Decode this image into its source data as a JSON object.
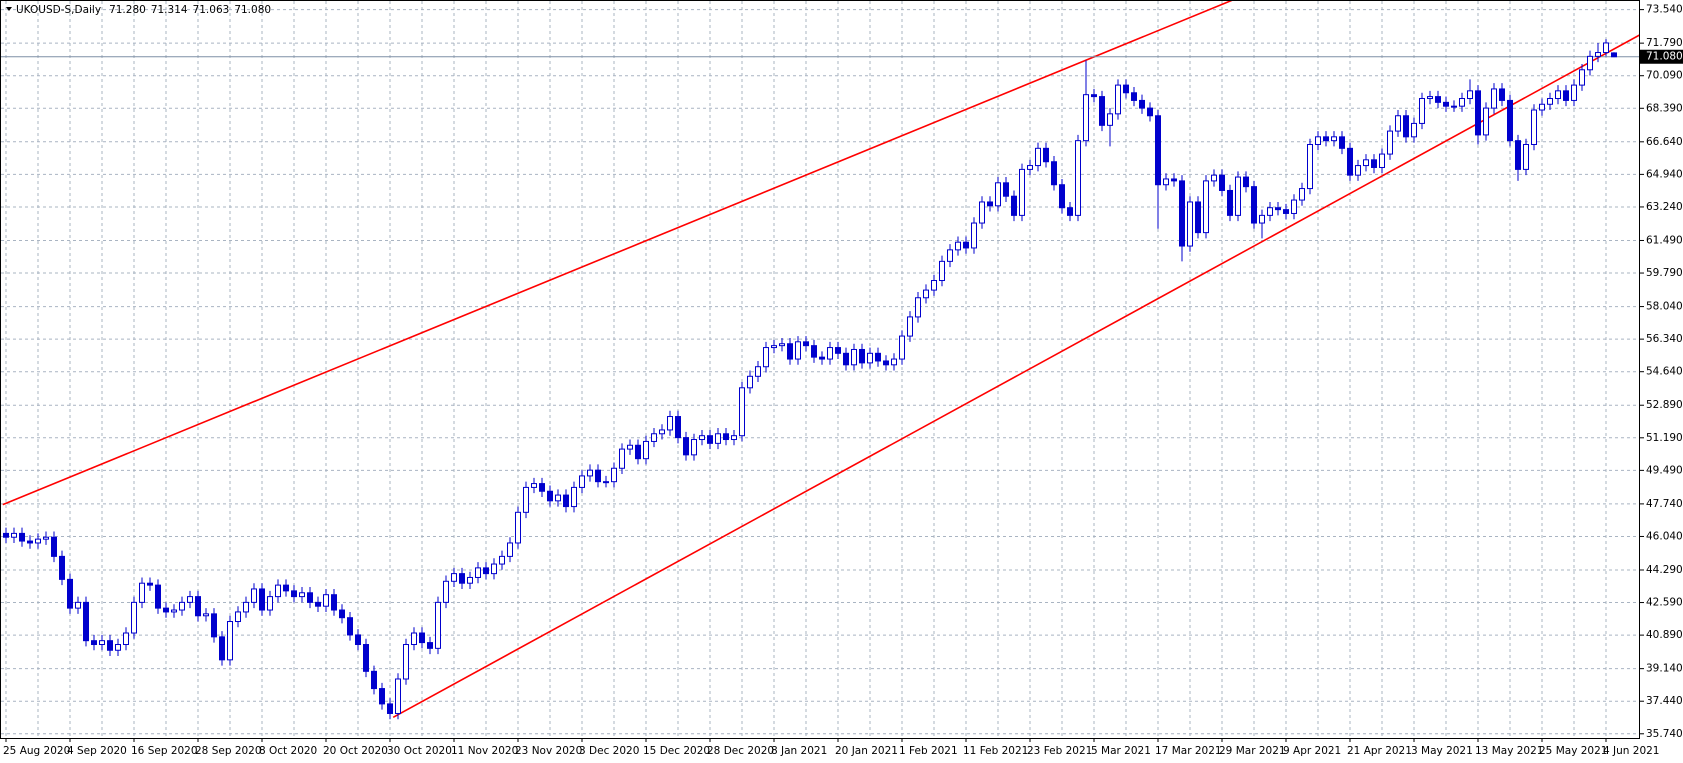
{
  "chart_data": {
    "type": "candlestick",
    "title": "UKOUSD-S,Daily",
    "ohlc_labels": [
      "71.280",
      "71.314",
      "71.063",
      "71.080"
    ],
    "current_price": {
      "value": 71.08,
      "label": "71.080"
    },
    "color": "#0000cd",
    "grid": true,
    "grid_color": "#a9b4c2",
    "ylim": [
      35.52,
      73.99
    ],
    "yticks": [
      {
        "value": 73.54,
        "label": "73.540"
      },
      {
        "value": 71.79,
        "label": "71.790"
      },
      {
        "value": 70.09,
        "label": "70.090"
      },
      {
        "value": 68.39,
        "label": "68.390"
      },
      {
        "value": 66.64,
        "label": "66.640"
      },
      {
        "value": 64.94,
        "label": "64.940"
      },
      {
        "value": 63.24,
        "label": "63.240"
      },
      {
        "value": 61.49,
        "label": "61.490"
      },
      {
        "value": 59.79,
        "label": "59.790"
      },
      {
        "value": 58.04,
        "label": "58.040"
      },
      {
        "value": 56.34,
        "label": "56.340"
      },
      {
        "value": 54.64,
        "label": "54.640"
      },
      {
        "value": 52.89,
        "label": "52.890"
      },
      {
        "value": 51.19,
        "label": "51.190"
      },
      {
        "value": 49.49,
        "label": "49.490"
      },
      {
        "value": 47.74,
        "label": "47.740"
      },
      {
        "value": 46.04,
        "label": "46.040"
      },
      {
        "value": 44.29,
        "label": "44.290"
      },
      {
        "value": 42.59,
        "label": "42.590"
      },
      {
        "value": 40.89,
        "label": "40.890"
      },
      {
        "value": 39.14,
        "label": "39.140"
      },
      {
        "value": 37.44,
        "label": "37.440"
      },
      {
        "value": 35.74,
        "label": "35.740"
      }
    ],
    "trendlines": [
      {
        "color": "#ff0000",
        "points": [
          [
            -0.4,
            47.7
          ],
          [
            135,
            70.9
          ]
        ]
      },
      {
        "color": "#ff0000",
        "points": [
          [
            48.4,
            36.6
          ],
          [
            205,
            72.4
          ]
        ]
      }
    ],
    "categories": [
      "25 Aug 2020",
      null,
      null,
      null,
      null,
      null,
      null,
      null,
      "4 Sep 2020",
      null,
      null,
      null,
      null,
      null,
      null,
      null,
      "16 Sep 2020",
      null,
      null,
      null,
      null,
      null,
      null,
      null,
      "28 Sep 2020",
      null,
      null,
      null,
      null,
      null,
      null,
      null,
      "8 Oct 2020",
      null,
      null,
      null,
      null,
      null,
      null,
      null,
      "20 Oct 2020",
      null,
      null,
      null,
      null,
      null,
      null,
      null,
      "30 Oct 2020",
      null,
      null,
      null,
      null,
      null,
      null,
      null,
      "11 Nov 2020",
      null,
      null,
      null,
      null,
      null,
      null,
      null,
      "23 Nov 2020",
      null,
      null,
      null,
      null,
      null,
      null,
      null,
      "3 Dec 2020",
      null,
      null,
      null,
      null,
      null,
      null,
      null,
      "15 Dec 2020",
      null,
      null,
      null,
      null,
      null,
      null,
      null,
      "28 Dec 2020",
      null,
      null,
      null,
      null,
      null,
      null,
      null,
      "8 Jan 2021",
      null,
      null,
      null,
      null,
      null,
      null,
      null,
      "20 Jan 2021",
      null,
      null,
      null,
      null,
      null,
      null,
      null,
      "1 Feb 2021",
      null,
      null,
      null,
      null,
      null,
      null,
      null,
      "11 Feb 2021",
      null,
      null,
      null,
      null,
      null,
      null,
      null,
      "23 Feb 2021",
      null,
      null,
      null,
      null,
      null,
      null,
      null,
      "5 Mar 2021",
      null,
      null,
      null,
      null,
      null,
      null,
      null,
      "17 Mar 2021",
      null,
      null,
      null,
      null,
      null,
      null,
      null,
      "29 Mar 2021",
      null,
      null,
      null,
      null,
      null,
      null,
      null,
      "9 Apr 2021",
      null,
      null,
      null,
      null,
      null,
      null,
      null,
      "21 Apr 2021",
      null,
      null,
      null,
      null,
      null,
      null,
      null,
      "3 May 2021",
      null,
      null,
      null,
      null,
      null,
      null,
      null,
      "13 May 2021",
      null,
      null,
      null,
      null,
      null,
      null,
      null,
      "25 May 2021",
      null,
      null,
      null,
      null,
      null,
      null,
      null,
      "4 Jun 2021",
      null
    ],
    "candles": [
      [
        46.2,
        46.5,
        45.7,
        46.0
      ],
      [
        46.0,
        46.5,
        45.7,
        46.2
      ],
      [
        46.2,
        46.5,
        45.5,
        45.8
      ],
      [
        45.8,
        46.1,
        45.4,
        45.7
      ],
      [
        45.7,
        46.2,
        45.4,
        45.9
      ],
      [
        45.9,
        46.3,
        45.6,
        46.0
      ],
      [
        46.0,
        46.3,
        44.7,
        45.0
      ],
      [
        45.0,
        45.3,
        43.5,
        43.8
      ],
      [
        43.8,
        44.1,
        42.0,
        42.3
      ],
      [
        42.3,
        42.9,
        42.0,
        42.6
      ],
      [
        42.6,
        42.9,
        40.3,
        40.6
      ],
      [
        40.6,
        40.9,
        40.1,
        40.4
      ],
      [
        40.4,
        40.9,
        40.1,
        40.6
      ],
      [
        40.6,
        40.9,
        39.8,
        40.1
      ],
      [
        40.1,
        40.7,
        39.8,
        40.4
      ],
      [
        40.4,
        41.3,
        40.1,
        41.0
      ],
      [
        41.0,
        42.9,
        40.7,
        42.6
      ],
      [
        42.6,
        43.9,
        42.3,
        43.6
      ],
      [
        43.6,
        43.9,
        43.2,
        43.5
      ],
      [
        43.5,
        43.8,
        42.0,
        42.3
      ],
      [
        42.3,
        42.6,
        41.8,
        42.1
      ],
      [
        42.1,
        42.5,
        41.8,
        42.2
      ],
      [
        42.2,
        42.9,
        41.9,
        42.6
      ],
      [
        42.6,
        43.2,
        42.3,
        42.9
      ],
      [
        42.9,
        43.2,
        41.6,
        41.9
      ],
      [
        41.9,
        42.3,
        41.6,
        42.0
      ],
      [
        42.0,
        42.3,
        40.5,
        40.8
      ],
      [
        40.8,
        41.1,
        39.3,
        39.6
      ],
      [
        39.6,
        41.9,
        39.3,
        41.6
      ],
      [
        41.6,
        42.4,
        41.3,
        42.1
      ],
      [
        42.1,
        42.9,
        41.8,
        42.6
      ],
      [
        42.6,
        43.6,
        42.3,
        43.3
      ],
      [
        43.3,
        43.6,
        41.9,
        42.2
      ],
      [
        42.2,
        43.2,
        41.9,
        42.9
      ],
      [
        42.9,
        43.8,
        42.6,
        43.5
      ],
      [
        43.5,
        43.8,
        42.9,
        43.2
      ],
      [
        43.2,
        43.5,
        42.6,
        42.9
      ],
      [
        42.9,
        43.4,
        42.6,
        43.1
      ],
      [
        43.1,
        43.4,
        42.3,
        42.6
      ],
      [
        42.6,
        42.9,
        42.1,
        42.4
      ],
      [
        42.4,
        43.3,
        42.1,
        43.0
      ],
      [
        43.0,
        43.3,
        41.9,
        42.2
      ],
      [
        42.2,
        42.5,
        41.5,
        41.8
      ],
      [
        41.8,
        42.1,
        40.6,
        40.9
      ],
      [
        40.9,
        41.2,
        40.1,
        40.4
      ],
      [
        40.4,
        40.7,
        38.7,
        39.0
      ],
      [
        39.0,
        39.3,
        37.8,
        38.1
      ],
      [
        38.1,
        38.4,
        37.0,
        37.3
      ],
      [
        37.3,
        37.6,
        36.5,
        36.8
      ],
      [
        36.8,
        38.9,
        36.5,
        38.6
      ],
      [
        38.6,
        40.7,
        38.3,
        40.4
      ],
      [
        40.4,
        41.3,
        40.1,
        41.0
      ],
      [
        41.0,
        41.3,
        40.2,
        40.5
      ],
      [
        40.5,
        40.8,
        39.9,
        40.2
      ],
      [
        40.2,
        42.9,
        39.9,
        42.6
      ],
      [
        42.6,
        44.0,
        42.3,
        43.7
      ],
      [
        43.7,
        44.4,
        43.4,
        44.1
      ],
      [
        44.1,
        44.4,
        43.3,
        43.6
      ],
      [
        43.6,
        44.2,
        43.3,
        43.9
      ],
      [
        43.9,
        44.7,
        43.6,
        44.4
      ],
      [
        44.4,
        44.7,
        43.8,
        44.1
      ],
      [
        44.1,
        44.9,
        43.8,
        44.6
      ],
      [
        44.6,
        45.3,
        44.3,
        45.0
      ],
      [
        45.0,
        46.0,
        44.7,
        45.7
      ],
      [
        45.7,
        47.6,
        45.4,
        47.3
      ],
      [
        47.3,
        48.9,
        47.0,
        48.6
      ],
      [
        48.6,
        49.1,
        48.3,
        48.8
      ],
      [
        48.8,
        49.1,
        48.1,
        48.4
      ],
      [
        48.4,
        48.7,
        47.6,
        47.9
      ],
      [
        47.9,
        48.5,
        47.6,
        48.2
      ],
      [
        48.2,
        48.5,
        47.3,
        47.6
      ],
      [
        47.6,
        48.9,
        47.3,
        48.6
      ],
      [
        48.6,
        49.5,
        48.3,
        49.2
      ],
      [
        49.2,
        49.8,
        48.9,
        49.5
      ],
      [
        49.5,
        49.8,
        48.6,
        48.9
      ],
      [
        48.9,
        49.2,
        48.6,
        48.9
      ],
      [
        48.9,
        49.9,
        48.6,
        49.6
      ],
      [
        49.6,
        50.9,
        49.3,
        50.6
      ],
      [
        50.6,
        51.1,
        50.3,
        50.8
      ],
      [
        50.8,
        51.1,
        49.8,
        50.1
      ],
      [
        50.1,
        51.3,
        49.8,
        51.0
      ],
      [
        51.0,
        51.7,
        50.7,
        51.4
      ],
      [
        51.4,
        51.9,
        51.1,
        51.6
      ],
      [
        51.6,
        52.6,
        51.3,
        52.3
      ],
      [
        52.3,
        52.6,
        50.9,
        51.2
      ],
      [
        51.2,
        51.5,
        50.0,
        50.3
      ],
      [
        50.3,
        51.4,
        50.0,
        51.1
      ],
      [
        51.1,
        51.6,
        50.8,
        51.3
      ],
      [
        51.3,
        51.6,
        50.6,
        50.9
      ],
      [
        50.9,
        51.7,
        50.6,
        51.4
      ],
      [
        51.4,
        51.7,
        50.8,
        51.1
      ],
      [
        51.1,
        51.6,
        50.8,
        51.3
      ],
      [
        51.3,
        54.1,
        51.0,
        53.8
      ],
      [
        53.8,
        54.7,
        53.5,
        54.4
      ],
      [
        54.4,
        55.2,
        54.1,
        54.9
      ],
      [
        54.9,
        56.2,
        54.6,
        55.9
      ],
      [
        55.9,
        56.3,
        55.6,
        56.0
      ],
      [
        56.0,
        56.4,
        55.7,
        56.1
      ],
      [
        56.1,
        56.4,
        55.0,
        55.3
      ],
      [
        55.3,
        56.5,
        55.0,
        56.2
      ],
      [
        56.2,
        56.5,
        55.7,
        56.0
      ],
      [
        56.0,
        56.3,
        55.1,
        55.4
      ],
      [
        55.4,
        55.7,
        55.0,
        55.3
      ],
      [
        55.3,
        56.2,
        55.0,
        55.9
      ],
      [
        55.9,
        56.2,
        55.3,
        55.6
      ],
      [
        55.6,
        55.9,
        54.7,
        55.0
      ],
      [
        55.0,
        56.1,
        54.7,
        55.8
      ],
      [
        55.8,
        56.1,
        54.8,
        55.1
      ],
      [
        55.1,
        55.9,
        54.8,
        55.6
      ],
      [
        55.6,
        55.9,
        54.9,
        55.2
      ],
      [
        55.2,
        55.5,
        54.7,
        55.0
      ],
      [
        55.0,
        55.6,
        54.7,
        55.3
      ],
      [
        55.3,
        56.8,
        55.0,
        56.5
      ],
      [
        56.5,
        57.8,
        56.2,
        57.5
      ],
      [
        57.5,
        58.8,
        57.2,
        58.5
      ],
      [
        58.5,
        59.2,
        58.2,
        58.9
      ],
      [
        58.9,
        59.7,
        58.6,
        59.4
      ],
      [
        59.4,
        60.7,
        59.1,
        60.4
      ],
      [
        60.4,
        61.3,
        60.1,
        61.0
      ],
      [
        61.0,
        61.7,
        60.7,
        61.4
      ],
      [
        61.4,
        61.7,
        60.8,
        61.1
      ],
      [
        61.1,
        62.7,
        60.8,
        62.4
      ],
      [
        62.4,
        63.8,
        62.1,
        63.5
      ],
      [
        63.5,
        63.8,
        63.0,
        63.3
      ],
      [
        63.3,
        64.8,
        63.0,
        64.5
      ],
      [
        64.5,
        64.8,
        63.5,
        63.8
      ],
      [
        63.8,
        64.1,
        62.5,
        62.8
      ],
      [
        62.8,
        65.5,
        62.5,
        65.2
      ],
      [
        65.2,
        65.7,
        64.9,
        65.4
      ],
      [
        65.4,
        66.6,
        65.1,
        66.3
      ],
      [
        66.3,
        66.6,
        65.3,
        65.6
      ],
      [
        65.6,
        65.9,
        64.1,
        64.4
      ],
      [
        64.4,
        64.7,
        62.9,
        63.2
      ],
      [
        63.2,
        63.5,
        62.5,
        62.8
      ],
      [
        62.8,
        67.0,
        62.5,
        66.7
      ],
      [
        66.7,
        70.9,
        66.4,
        69.1
      ],
      [
        69.1,
        69.4,
        68.7,
        69.0
      ],
      [
        69.0,
        69.3,
        67.2,
        67.5
      ],
      [
        67.5,
        68.4,
        66.4,
        68.1
      ],
      [
        68.1,
        69.9,
        67.8,
        69.6
      ],
      [
        69.6,
        69.9,
        68.9,
        69.2
      ],
      [
        69.2,
        69.5,
        68.5,
        68.8
      ],
      [
        68.8,
        69.1,
        68.1,
        68.4
      ],
      [
        68.4,
        68.7,
        67.7,
        68.0
      ],
      [
        68.0,
        68.3,
        62.1,
        64.4
      ],
      [
        64.4,
        65.0,
        64.1,
        64.7
      ],
      [
        64.7,
        65.0,
        64.3,
        64.6
      ],
      [
        64.6,
        64.9,
        60.4,
        61.2
      ],
      [
        61.2,
        63.8,
        60.9,
        63.5
      ],
      [
        63.5,
        63.8,
        61.6,
        61.9
      ],
      [
        61.9,
        64.9,
        61.6,
        64.6
      ],
      [
        64.6,
        65.2,
        64.3,
        64.9
      ],
      [
        64.9,
        65.2,
        63.8,
        64.1
      ],
      [
        64.1,
        64.4,
        62.5,
        62.8
      ],
      [
        62.8,
        65.1,
        62.5,
        64.8
      ],
      [
        64.8,
        65.1,
        64.0,
        64.3
      ],
      [
        64.3,
        64.6,
        62.1,
        62.4
      ],
      [
        62.4,
        63.1,
        61.6,
        62.8
      ],
      [
        62.8,
        63.5,
        62.5,
        63.2
      ],
      [
        63.2,
        63.5,
        62.8,
        63.1
      ],
      [
        63.1,
        63.4,
        62.6,
        62.9
      ],
      [
        62.9,
        63.9,
        62.6,
        63.6
      ],
      [
        63.6,
        64.5,
        63.3,
        64.2
      ],
      [
        64.2,
        66.8,
        63.9,
        66.5
      ],
      [
        66.5,
        67.2,
        66.2,
        66.9
      ],
      [
        66.9,
        67.2,
        66.4,
        66.7
      ],
      [
        66.7,
        67.2,
        66.4,
        66.9
      ],
      [
        66.9,
        67.2,
        66.0,
        66.3
      ],
      [
        66.3,
        66.6,
        64.6,
        64.9
      ],
      [
        64.9,
        65.7,
        64.6,
        65.4
      ],
      [
        65.4,
        66.0,
        65.1,
        65.7
      ],
      [
        65.7,
        66.0,
        65.0,
        65.3
      ],
      [
        65.3,
        66.3,
        65.0,
        66.0
      ],
      [
        66.0,
        67.5,
        65.7,
        67.2
      ],
      [
        67.2,
        68.3,
        66.9,
        68.0
      ],
      [
        68.0,
        68.3,
        66.6,
        66.9
      ],
      [
        66.9,
        67.9,
        66.6,
        67.6
      ],
      [
        67.6,
        69.2,
        67.3,
        68.9
      ],
      [
        68.9,
        69.3,
        68.6,
        69.0
      ],
      [
        69.0,
        69.3,
        68.4,
        68.7
      ],
      [
        68.7,
        69.0,
        68.2,
        68.5
      ],
      [
        68.5,
        68.8,
        68.2,
        68.5
      ],
      [
        68.5,
        69.2,
        68.2,
        68.9
      ],
      [
        68.9,
        69.9,
        68.6,
        69.3
      ],
      [
        69.3,
        69.6,
        66.5,
        67.0
      ],
      [
        67.0,
        68.7,
        66.7,
        68.4
      ],
      [
        68.4,
        69.7,
        68.1,
        69.4
      ],
      [
        69.4,
        69.7,
        68.5,
        68.8
      ],
      [
        68.8,
        69.1,
        66.4,
        66.7
      ],
      [
        66.7,
        67.0,
        64.6,
        65.2
      ],
      [
        65.2,
        66.8,
        64.9,
        66.5
      ],
      [
        66.5,
        68.6,
        66.2,
        68.3
      ],
      [
        68.3,
        68.9,
        68.0,
        68.6
      ],
      [
        68.6,
        69.2,
        68.3,
        68.9
      ],
      [
        68.9,
        69.6,
        68.6,
        69.3
      ],
      [
        69.3,
        69.6,
        68.5,
        68.8
      ],
      [
        68.8,
        69.9,
        68.5,
        69.6
      ],
      [
        69.6,
        70.7,
        69.3,
        70.4
      ],
      [
        70.4,
        71.4,
        70.1,
        71.1
      ],
      [
        71.1,
        71.8,
        70.8,
        71.3
      ],
      [
        71.3,
        72.0,
        71.1,
        71.8
      ],
      [
        71.28,
        71.314,
        71.063,
        71.08
      ]
    ]
  }
}
